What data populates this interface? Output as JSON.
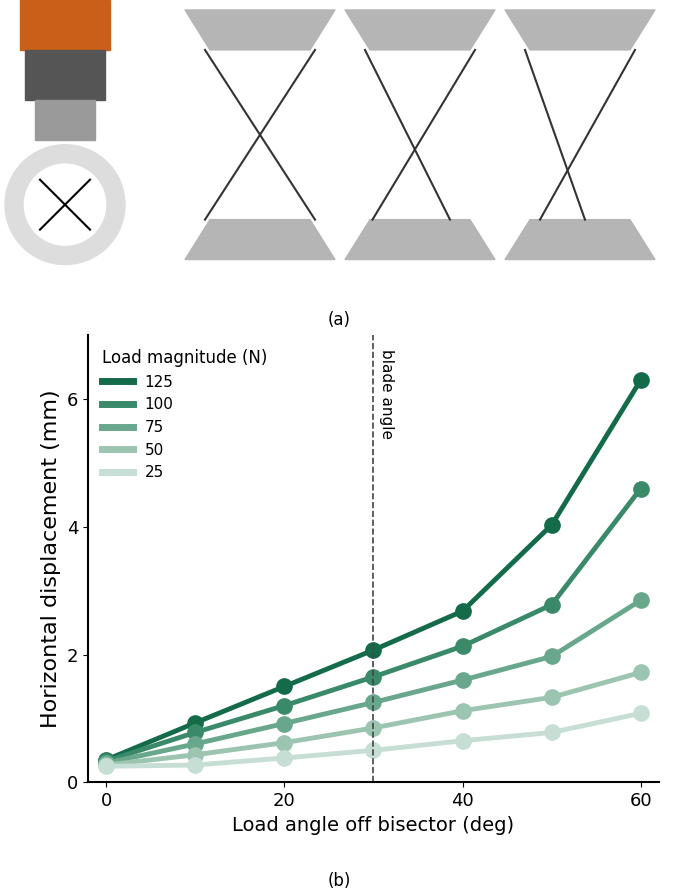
{
  "panel_labels": [
    "(a)",
    "(b)"
  ],
  "chart_data": {
    "type": "line",
    "x_label": "Load angle off bisector (deg)",
    "y_label": "Horizontal displacement (mm)",
    "legend_title": "Load magnitude (N)",
    "legend": "upper left",
    "marker": "o",
    "line_style": "solid",
    "x": [
      0,
      10,
      20,
      30,
      40,
      50,
      60
    ],
    "xlim": [
      -2,
      62
    ],
    "xticks": [
      0,
      20,
      40,
      60
    ],
    "ylim": [
      0,
      7
    ],
    "yticks": [
      0,
      2,
      4,
      6
    ],
    "grid": false,
    "annotations": [
      {
        "text": "blade angle",
        "x": 30
      }
    ],
    "series": [
      {
        "name": "125",
        "color": "#136b4a",
        "values": [
          0.35,
          0.93,
          1.5,
          2.07,
          2.68,
          4.03,
          6.3
        ]
      },
      {
        "name": "100",
        "color": "#3a8a6a",
        "values": [
          0.33,
          0.78,
          1.2,
          1.65,
          2.13,
          2.78,
          4.6
        ]
      },
      {
        "name": "75",
        "color": "#68a78c",
        "values": [
          0.3,
          0.6,
          0.92,
          1.25,
          1.6,
          1.97,
          2.85
        ]
      },
      {
        "name": "50",
        "color": "#9bc5b1",
        "values": [
          0.27,
          0.43,
          0.62,
          0.85,
          1.12,
          1.33,
          1.72
        ]
      },
      {
        "name": "25",
        "color": "#c6ded3",
        "values": [
          0.25,
          0.27,
          0.38,
          0.5,
          0.65,
          0.78,
          1.08
        ]
      }
    ]
  }
}
